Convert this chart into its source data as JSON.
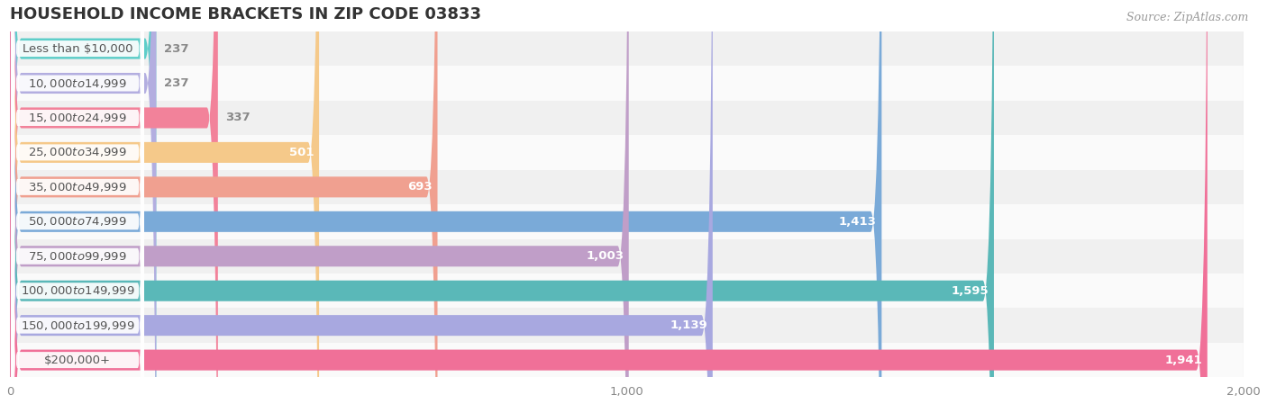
{
  "title": "Household Income Brackets in Zip Code 03833",
  "title_display": "HOUSEHOLD INCOME BRACKETS IN ZIP CODE 03833",
  "source": "Source: ZipAtlas.com",
  "categories": [
    "Less than $10,000",
    "$10,000 to $14,999",
    "$15,000 to $24,999",
    "$25,000 to $34,999",
    "$35,000 to $49,999",
    "$50,000 to $74,999",
    "$75,000 to $99,999",
    "$100,000 to $149,999",
    "$150,000 to $199,999",
    "$200,000+"
  ],
  "values": [
    237,
    237,
    337,
    501,
    693,
    1413,
    1003,
    1595,
    1139,
    1941
  ],
  "bar_colors": [
    "#5ecec9",
    "#b3aee0",
    "#f2829a",
    "#f5c98a",
    "#f0a090",
    "#7aaad8",
    "#c09ec8",
    "#5ab8b8",
    "#a8a8e0",
    "#f07098"
  ],
  "value_label_inside_color": "#ffffff",
  "value_label_outside_color": "#888888",
  "category_label_color": "#555555",
  "bg_color": "#ffffff",
  "row_bg_odd": "#f0f0f0",
  "row_bg_even": "#fafafa",
  "xlim_max": 2000,
  "xticks": [
    0,
    1000,
    2000
  ],
  "title_fontsize": 13,
  "cat_fontsize": 9.5,
  "value_fontsize": 9.5,
  "source_fontsize": 9,
  "bar_height": 0.6,
  "inside_threshold": 500
}
